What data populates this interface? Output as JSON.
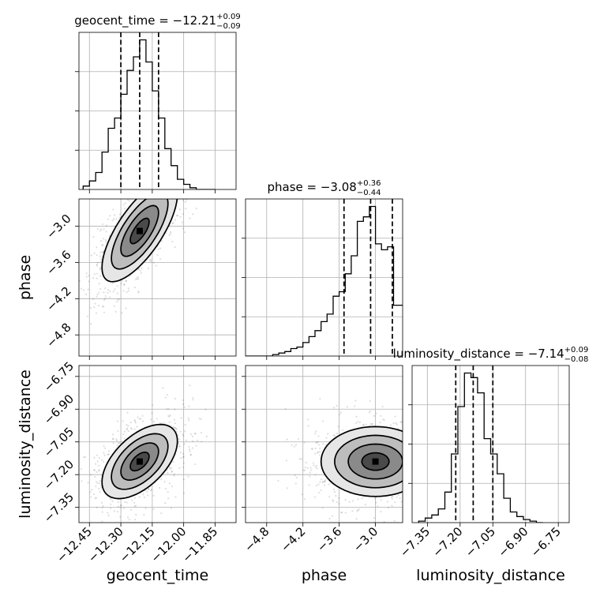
{
  "chart_data": {
    "type": "corner",
    "parameters": [
      "geocent_time",
      "phase",
      "luminosity_distance"
    ],
    "titles": [
      {
        "text": "geocent_time = −12.21",
        "plus": "+0.09",
        "minus": "−0.09"
      },
      {
        "text": "phase = −3.08",
        "plus": "+0.36",
        "minus": "−0.44"
      },
      {
        "text": "luminosity_distance = −7.14",
        "plus": "+0.09",
        "minus": "−0.08"
      }
    ],
    "ranges": [
      [
        -12.5,
        -11.75
      ],
      [
        -5.15,
        -2.55
      ],
      [
        -7.42,
        -6.7
      ]
    ],
    "ticks": {
      "geocent_time": [
        "−12.45",
        "−12.30",
        "−12.15",
        "−12.00",
        "−11.85"
      ],
      "phase": [
        "−4.8",
        "−4.2",
        "−3.6",
        "−3.0"
      ],
      "luminosity_distance": [
        "−7.35",
        "−7.20",
        "−7.05",
        "−6.90",
        "−6.75"
      ]
    },
    "tick_values": {
      "geocent_time": [
        -12.45,
        -12.3,
        -12.15,
        -12.0,
        -11.85
      ],
      "phase": [
        -4.8,
        -4.2,
        -3.6,
        -3.0
      ],
      "luminosity_distance": [
        -7.35,
        -7.2,
        -7.05,
        -6.9,
        -6.75
      ]
    },
    "quantiles": [
      [
        -12.3,
        -12.21,
        -12.12
      ],
      [
        -3.52,
        -3.08,
        -2.72
      ],
      [
        -7.22,
        -7.14,
        -7.05
      ]
    ],
    "histograms": [
      {
        "parameter": "geocent_time",
        "bin_edges": [
          -12.48,
          -12.45,
          -12.42,
          -12.39,
          -12.36,
          -12.33,
          -12.3,
          -12.27,
          -12.24,
          -12.21,
          -12.18,
          -12.15,
          -12.12,
          -12.09,
          -12.06,
          -12.03,
          -12.0,
          -11.97,
          -11.94,
          -11.91,
          -11.88,
          -11.85
        ],
        "counts": [
          2,
          5,
          10,
          22,
          36,
          42,
          56,
          70,
          78,
          88,
          75,
          58,
          42,
          24,
          14,
          6,
          3,
          1,
          0,
          0,
          0
        ]
      },
      {
        "parameter": "phase",
        "bin_edges": [
          -5.2,
          -5.1,
          -5.0,
          -4.9,
          -4.8,
          -4.7,
          -4.6,
          -4.5,
          -4.4,
          -4.3,
          -4.2,
          -4.1,
          -4.0,
          -3.9,
          -3.8,
          -3.7,
          -3.6,
          -3.5,
          -3.4,
          -3.3,
          -3.2,
          -3.1,
          -3.0,
          -2.9,
          -2.8,
          -2.7,
          -2.6,
          -2.5
        ],
        "counts": [
          0,
          0,
          0,
          0,
          0,
          1,
          2,
          3,
          5,
          6,
          9,
          13,
          17,
          23,
          28,
          40,
          43,
          55,
          67,
          90,
          93,
          100,
          75,
          71,
          73,
          34,
          34
        ]
      },
      {
        "parameter": "luminosity_distance",
        "bin_edges": [
          -7.39,
          -7.36,
          -7.33,
          -7.3,
          -7.27,
          -7.24,
          -7.21,
          -7.18,
          -7.15,
          -7.12,
          -7.09,
          -7.06,
          -7.03,
          -7.0,
          -6.97,
          -6.94,
          -6.91,
          -6.88,
          -6.85,
          -6.82
        ],
        "counts": [
          1,
          3,
          5,
          9,
          20,
          45,
          76,
          98,
          95,
          85,
          55,
          45,
          32,
          16,
          7,
          4,
          2,
          1,
          0
        ]
      }
    ],
    "density_2d": [
      {
        "x": "geocent_time",
        "y": "phase",
        "peak": [
          -12.21,
          -3.08
        ],
        "sigma": [
          0.09,
          0.42
        ],
        "correlation": 0.72
      },
      {
        "x": "geocent_time",
        "y": "luminosity_distance",
        "peak": [
          -12.21,
          -7.14
        ],
        "sigma": [
          0.09,
          0.085
        ],
        "correlation": 0.55
      },
      {
        "x": "phase",
        "y": "luminosity_distance",
        "peak": [
          -3.0,
          -7.14
        ],
        "sigma": [
          0.45,
          0.08
        ],
        "correlation": 0.0
      }
    ],
    "contour_levels": [
      0.5,
      1.0,
      1.5,
      2.0
    ],
    "grid": true
  }
}
